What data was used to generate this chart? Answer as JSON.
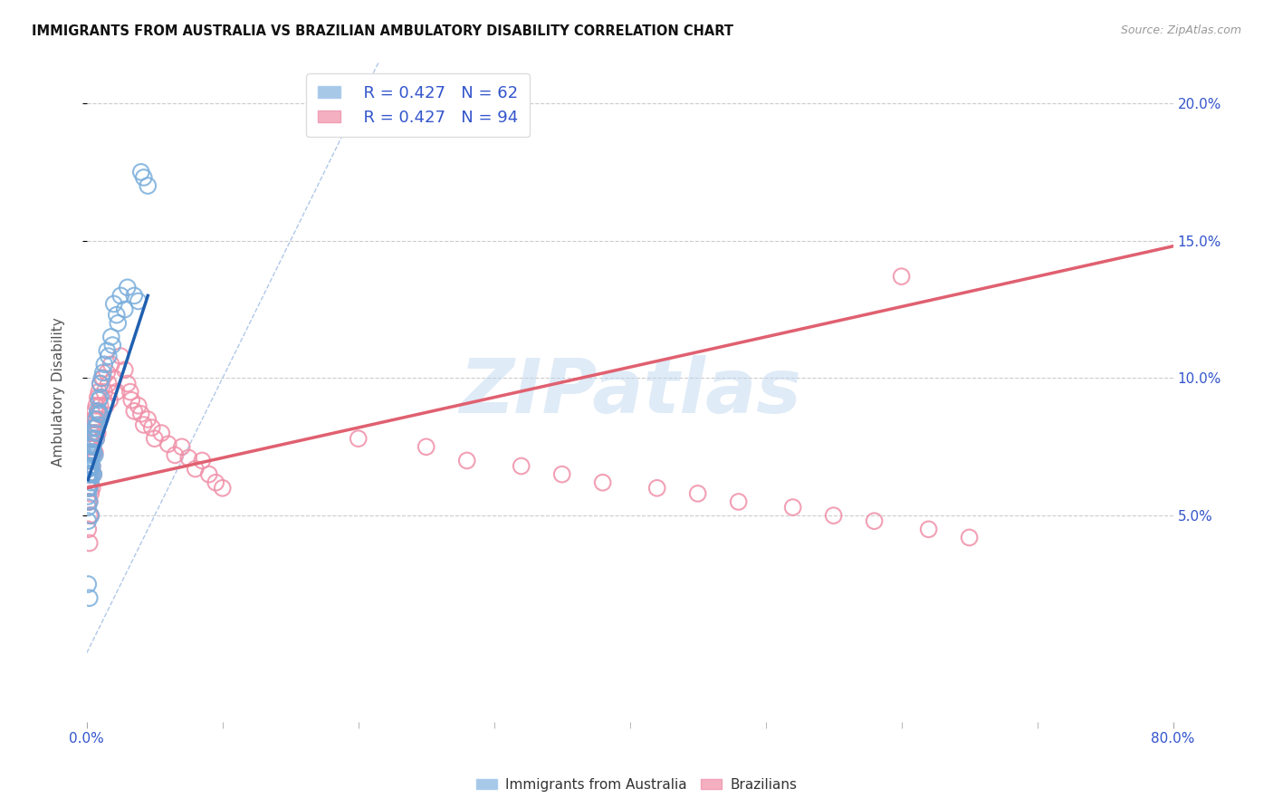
{
  "title": "IMMIGRANTS FROM AUSTRALIA VS BRAZILIAN AMBULATORY DISABILITY CORRELATION CHART",
  "source": "Source: ZipAtlas.com",
  "ylabel": "Ambulatory Disability",
  "ytick_values": [
    0.05,
    0.1,
    0.15,
    0.2
  ],
  "ytick_labels": [
    "5.0%",
    "10.0%",
    "15.0%",
    "20.0%"
  ],
  "watermark": "ZIPatlas",
  "legend_label1": "Immigrants from Australia",
  "legend_label2": "Brazilians",
  "australia_color": "#a8c8e8",
  "brazil_color": "#f4b0c0",
  "australia_face": "none",
  "australia_edge": "#7aaedc",
  "brazil_edge": "#f090a8",
  "australia_line_color": "#2060b0",
  "brazil_line_color": "#e06070",
  "dashed_line_color": "#b0c8e8",
  "xlim": [
    0.0,
    0.8
  ],
  "ylim": [
    -0.025,
    0.215
  ],
  "australia_scatter_x": [
    0.001,
    0.001,
    0.001,
    0.001,
    0.001,
    0.001,
    0.001,
    0.002,
    0.002,
    0.002,
    0.002,
    0.002,
    0.002,
    0.002,
    0.002,
    0.003,
    0.003,
    0.003,
    0.003,
    0.003,
    0.003,
    0.003,
    0.004,
    0.004,
    0.004,
    0.004,
    0.004,
    0.005,
    0.005,
    0.005,
    0.005,
    0.006,
    0.006,
    0.006,
    0.007,
    0.007,
    0.007,
    0.008,
    0.008,
    0.009,
    0.009,
    0.01,
    0.01,
    0.01,
    0.011,
    0.012,
    0.013,
    0.015,
    0.016,
    0.018,
    0.019,
    0.02,
    0.022,
    0.023,
    0.025,
    0.028,
    0.03,
    0.035,
    0.038,
    0.04,
    0.042,
    0.045
  ],
  "australia_scatter_y": [
    0.065,
    0.063,
    0.06,
    0.057,
    0.053,
    0.048,
    0.025,
    0.07,
    0.068,
    0.067,
    0.065,
    0.063,
    0.06,
    0.055,
    0.02,
    0.073,
    0.072,
    0.07,
    0.068,
    0.065,
    0.062,
    0.05,
    0.075,
    0.073,
    0.071,
    0.068,
    0.065,
    0.078,
    0.076,
    0.073,
    0.065,
    0.082,
    0.08,
    0.072,
    0.085,
    0.082,
    0.078,
    0.088,
    0.083,
    0.092,
    0.087,
    0.098,
    0.093,
    0.087,
    0.1,
    0.102,
    0.105,
    0.11,
    0.108,
    0.115,
    0.112,
    0.127,
    0.123,
    0.12,
    0.13,
    0.125,
    0.133,
    0.13,
    0.128,
    0.175,
    0.173,
    0.17
  ],
  "brazil_scatter_x": [
    0.001,
    0.001,
    0.001,
    0.001,
    0.001,
    0.001,
    0.002,
    0.002,
    0.002,
    0.002,
    0.002,
    0.002,
    0.002,
    0.002,
    0.003,
    0.003,
    0.003,
    0.003,
    0.003,
    0.003,
    0.003,
    0.003,
    0.004,
    0.004,
    0.004,
    0.004,
    0.004,
    0.004,
    0.005,
    0.005,
    0.005,
    0.005,
    0.005,
    0.006,
    0.006,
    0.006,
    0.006,
    0.007,
    0.007,
    0.007,
    0.008,
    0.008,
    0.008,
    0.009,
    0.009,
    0.01,
    0.01,
    0.012,
    0.013,
    0.014,
    0.015,
    0.016,
    0.017,
    0.018,
    0.02,
    0.022,
    0.025,
    0.028,
    0.03,
    0.032,
    0.033,
    0.035,
    0.038,
    0.04,
    0.042,
    0.045,
    0.048,
    0.05,
    0.055,
    0.06,
    0.065,
    0.07,
    0.075,
    0.08,
    0.085,
    0.09,
    0.095,
    0.1,
    0.6,
    0.2,
    0.25,
    0.28,
    0.32,
    0.35,
    0.38,
    0.42,
    0.45,
    0.48,
    0.52,
    0.55,
    0.58,
    0.62,
    0.65
  ],
  "brazil_scatter_y": [
    0.075,
    0.07,
    0.065,
    0.06,
    0.055,
    0.045,
    0.078,
    0.075,
    0.07,
    0.065,
    0.06,
    0.055,
    0.05,
    0.04,
    0.08,
    0.078,
    0.075,
    0.073,
    0.068,
    0.065,
    0.058,
    0.05,
    0.082,
    0.08,
    0.078,
    0.073,
    0.068,
    0.06,
    0.085,
    0.082,
    0.078,
    0.073,
    0.065,
    0.088,
    0.085,
    0.08,
    0.073,
    0.09,
    0.085,
    0.078,
    0.093,
    0.087,
    0.08,
    0.095,
    0.088,
    0.098,
    0.09,
    0.1,
    0.095,
    0.09,
    0.102,
    0.098,
    0.092,
    0.105,
    0.1,
    0.095,
    0.108,
    0.103,
    0.098,
    0.095,
    0.092,
    0.088,
    0.09,
    0.087,
    0.083,
    0.085,
    0.082,
    0.078,
    0.08,
    0.076,
    0.072,
    0.075,
    0.071,
    0.067,
    0.07,
    0.065,
    0.062,
    0.06,
    0.137,
    0.078,
    0.075,
    0.07,
    0.068,
    0.065,
    0.062,
    0.06,
    0.058,
    0.055,
    0.053,
    0.05,
    0.048,
    0.045,
    0.042
  ],
  "australia_line_x": [
    0.001,
    0.045
  ],
  "australia_line_y": [
    0.063,
    0.13
  ],
  "brazil_line_x": [
    0.0,
    0.8
  ],
  "brazil_line_y": [
    0.06,
    0.148
  ],
  "dashed_line_x": [
    0.0,
    0.215
  ],
  "dashed_line_y": [
    0.0,
    0.215
  ]
}
